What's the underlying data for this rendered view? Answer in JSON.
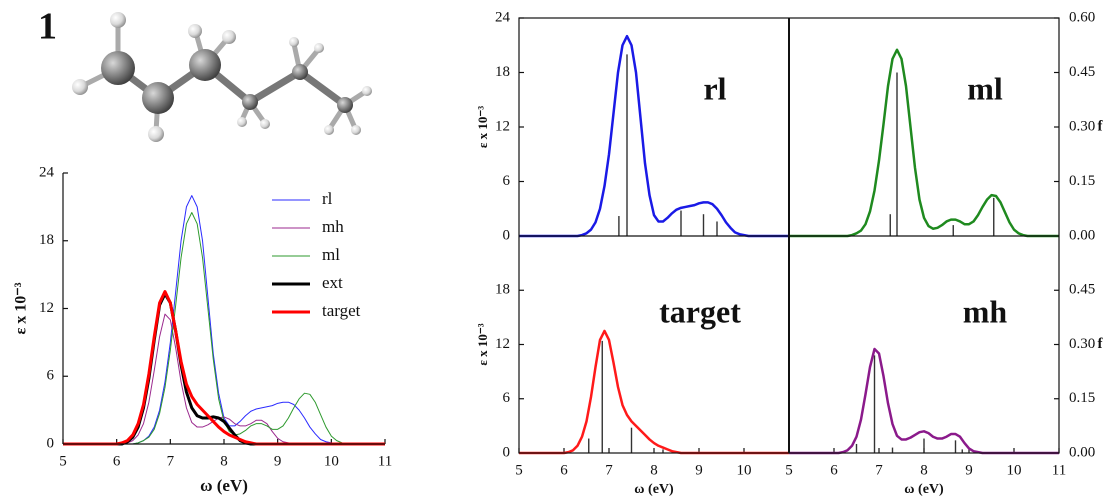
{
  "chart_data": [
    {
      "type": "line",
      "title": "1",
      "xlabel": "ω (eV)",
      "ylabel": "ε x 10⁻³",
      "xlim": [
        5,
        11
      ],
      "xticks": [
        5,
        6,
        7,
        8,
        9,
        10,
        11
      ],
      "ylim": [
        0,
        24
      ],
      "yticks": [
        0,
        6,
        12,
        18,
        24
      ],
      "legend": "upper right",
      "x": [
        5,
        6,
        6.1,
        6.2,
        6.3,
        6.4,
        6.5,
        6.6,
        6.7,
        6.8,
        6.9,
        7,
        7.1,
        7.2,
        7.3,
        7.4,
        7.5,
        7.6,
        7.7,
        7.8,
        7.9,
        8,
        8.1,
        8.2,
        8.3,
        8.4,
        8.5,
        8.6,
        8.7,
        8.8,
        8.9,
        9,
        9.1,
        9.2,
        9.3,
        9.4,
        9.5,
        9.6,
        9.7,
        9.8,
        9.9,
        10,
        10.1,
        10.2,
        10.3,
        10.4,
        10.5,
        10.6,
        11
      ],
      "series": [
        {
          "name": "rl",
          "color": "#2b2bff",
          "linewidth": 1,
          "values": [
            0,
            0,
            0,
            0,
            0,
            0.1,
            0.3,
            0.7,
            1.5,
            3,
            5.5,
            9,
            13.5,
            18,
            21,
            22,
            21,
            18,
            13,
            8,
            4.5,
            2.3,
            1.6,
            1.6,
            2,
            2.5,
            2.9,
            3.1,
            3.2,
            3.3,
            3.4,
            3.6,
            3.7,
            3.7,
            3.5,
            3,
            2.3,
            1.5,
            0.9,
            0.4,
            0.2,
            0.1,
            0,
            0,
            0,
            0,
            0,
            0,
            0
          ]
        },
        {
          "name": "mh",
          "color": "#9b2a8f",
          "linewidth": 1,
          "values": [
            0,
            0,
            0,
            0.1,
            0.3,
            0.8,
            1.8,
            3.7,
            6.5,
            9.5,
            11.5,
            11,
            8.5,
            5.5,
            3.2,
            1.9,
            1.5,
            1.5,
            1.7,
            2,
            2.3,
            2.4,
            2.2,
            1.8,
            1.6,
            1.6,
            1.8,
            2.1,
            2.1,
            1.8,
            1.1,
            0.5,
            0.2,
            0.1,
            0,
            0,
            0,
            0,
            0,
            0,
            0,
            0,
            0,
            0,
            0,
            0,
            0,
            0,
            0
          ]
        },
        {
          "name": "ml",
          "color": "#2e9a2e",
          "linewidth": 1,
          "values": [
            0,
            0,
            0,
            0,
            0,
            0.1,
            0.3,
            0.6,
            1.3,
            2.7,
            5,
            8.3,
            12.3,
            16.5,
            19.5,
            20.5,
            19.5,
            16.5,
            12,
            7.5,
            4,
            2,
            1.1,
            0.8,
            0.9,
            1.2,
            1.6,
            1.8,
            1.8,
            1.6,
            1.3,
            1.3,
            1.6,
            2.3,
            3.2,
            4,
            4.5,
            4.4,
            3.7,
            2.6,
            1.5,
            0.7,
            0.3,
            0.1,
            0,
            0,
            0,
            0,
            0
          ]
        },
        {
          "name": "ext",
          "color": "#000000",
          "linewidth": 3,
          "values": [
            0,
            0,
            0,
            0.2,
            0.6,
            1.5,
            3.2,
            5.8,
            9.2,
            12.3,
            13.3,
            12.5,
            10,
            7,
            4.6,
            3.2,
            2.5,
            2.3,
            2.3,
            2.4,
            2.3,
            2,
            1.4,
            0.8,
            0.3,
            0.1,
            0,
            0,
            0,
            0,
            0,
            0,
            0,
            0,
            0,
            0,
            0,
            0,
            0,
            0,
            0,
            0,
            0,
            0,
            0,
            0,
            0,
            0,
            0
          ]
        },
        {
          "name": "target",
          "color": "#ff0000",
          "linewidth": 3,
          "values": [
            0,
            0,
            0.1,
            0.3,
            0.8,
            1.8,
            3.5,
            6.2,
            9.5,
            12.5,
            13.5,
            12.5,
            10,
            7.3,
            5.3,
            4.2,
            3.5,
            3,
            2.5,
            2,
            1.5,
            1.1,
            0.8,
            0.6,
            0.4,
            0.2,
            0.1,
            0,
            0,
            0,
            0,
            0,
            0,
            0,
            0,
            0,
            0,
            0,
            0,
            0,
            0,
            0,
            0,
            0,
            0,
            0,
            0,
            0,
            0
          ]
        }
      ]
    },
    {
      "type": "line",
      "ylabel": "ε x 10⁻³",
      "xlim": [
        5,
        11
      ],
      "ylim": [
        0,
        24
      ],
      "yticks": [
        0,
        6,
        12,
        18,
        24
      ],
      "y2lim": [
        0,
        0.6
      ],
      "x": [
        5,
        6,
        6.1,
        6.2,
        6.3,
        6.4,
        6.5,
        6.6,
        6.7,
        6.8,
        6.9,
        7,
        7.1,
        7.2,
        7.3,
        7.4,
        7.5,
        7.6,
        7.7,
        7.8,
        7.9,
        8,
        8.1,
        8.2,
        8.3,
        8.4,
        8.5,
        8.6,
        8.7,
        8.8,
        8.9,
        9,
        9.1,
        9.2,
        9.3,
        9.4,
        9.5,
        9.6,
        9.7,
        9.8,
        9.9,
        10,
        10.1,
        10.2,
        10.3,
        10.4,
        10.5,
        10.6,
        11
      ],
      "series": [
        {
          "name": "rl",
          "color": "#1a1ae6",
          "linewidth": 2.5,
          "values": [
            0,
            0,
            0,
            0,
            0,
            0.1,
            0.3,
            0.7,
            1.5,
            3,
            5.5,
            9,
            13.5,
            18,
            21,
            22,
            21,
            18,
            13,
            8,
            4.5,
            2.3,
            1.6,
            1.6,
            2,
            2.5,
            2.9,
            3.1,
            3.2,
            3.3,
            3.4,
            3.6,
            3.7,
            3.7,
            3.5,
            3,
            2.3,
            1.5,
            0.9,
            0.4,
            0.2,
            0.1,
            0,
            0,
            0,
            0,
            0,
            0,
            0
          ]
        }
      ],
      "sticks": {
        "axis": "y2",
        "color": "#333333",
        "x": [
          7.22,
          7.4,
          8.6,
          9.1,
          9.4
        ],
        "values": [
          0.055,
          0.5,
          0.07,
          0.06,
          0.04
        ]
      }
    },
    {
      "type": "line",
      "y2label": "f",
      "xlim": [
        5,
        11
      ],
      "ylim": [
        0,
        24
      ],
      "y2lim": [
        0,
        0.6
      ],
      "y2ticks": [
        {
          "value": 0,
          "label": "0.00"
        },
        0.15,
        {
          "value": 0.3,
          "label": "0.30"
        },
        0.45,
        {
          "value": 0.6,
          "label": "0.60"
        }
      ],
      "x": [
        5,
        6,
        6.1,
        6.2,
        6.3,
        6.4,
        6.5,
        6.6,
        6.7,
        6.8,
        6.9,
        7,
        7.1,
        7.2,
        7.3,
        7.4,
        7.5,
        7.6,
        7.7,
        7.8,
        7.9,
        8,
        8.1,
        8.2,
        8.3,
        8.4,
        8.5,
        8.6,
        8.7,
        8.8,
        8.9,
        9,
        9.1,
        9.2,
        9.3,
        9.4,
        9.5,
        9.6,
        9.7,
        9.8,
        9.9,
        10,
        10.1,
        10.2,
        10.3,
        10.4,
        10.5,
        10.6,
        11
      ],
      "series": [
        {
          "name": "ml",
          "color": "#1f8a1f",
          "linewidth": 2.5,
          "values": [
            0,
            0,
            0,
            0,
            0,
            0.1,
            0.3,
            0.6,
            1.3,
            2.7,
            5,
            8.3,
            12.3,
            16.5,
            19.5,
            20.5,
            19.5,
            16.5,
            12,
            7.5,
            4,
            2,
            1.1,
            0.8,
            0.9,
            1.2,
            1.6,
            1.8,
            1.8,
            1.6,
            1.3,
            1.3,
            1.6,
            2.3,
            3.2,
            4,
            4.5,
            4.4,
            3.7,
            2.6,
            1.5,
            0.7,
            0.3,
            0.1,
            0,
            0,
            0,
            0,
            0
          ]
        }
      ],
      "sticks": {
        "axis": "y2",
        "color": "#333333",
        "x": [
          7.25,
          7.4,
          8.65,
          9.55
        ],
        "values": [
          0.06,
          0.45,
          0.03,
          0.105
        ]
      }
    },
    {
      "type": "line",
      "xlabel": "ω (eV)",
      "ylabel": "ε x 10⁻³",
      "xlim": [
        5,
        11
      ],
      "xticks": [
        5,
        6,
        7,
        8,
        9,
        10
      ],
      "ylim": [
        0,
        24
      ],
      "yticks": [
        0,
        6,
        12,
        18
      ],
      "y2lim": [
        0,
        0.6
      ],
      "x": [
        5,
        6,
        6.1,
        6.2,
        6.3,
        6.4,
        6.5,
        6.6,
        6.7,
        6.8,
        6.9,
        7,
        7.1,
        7.2,
        7.3,
        7.4,
        7.5,
        7.6,
        7.7,
        7.8,
        7.9,
        8,
        8.1,
        8.2,
        8.3,
        8.4,
        8.5,
        8.6,
        8.7,
        8.8,
        8.9,
        9,
        9.1,
        9.2,
        9.3,
        9.4,
        9.5,
        9.6,
        9.7,
        9.8,
        9.9,
        10,
        10.1,
        10.2,
        10.3,
        10.4,
        10.5,
        10.6,
        11
      ],
      "series": [
        {
          "name": "target",
          "color": "#ff1a1a",
          "linewidth": 2.5,
          "values": [
            0,
            0,
            0.1,
            0.3,
            0.8,
            1.8,
            3.5,
            6.2,
            9.5,
            12.5,
            13.5,
            12.5,
            10,
            7.3,
            5.3,
            4.2,
            3.5,
            3,
            2.5,
            2,
            1.5,
            1.1,
            0.8,
            0.6,
            0.4,
            0.2,
            0.1,
            0,
            0,
            0,
            0,
            0,
            0,
            0,
            0,
            0,
            0,
            0,
            0,
            0,
            0,
            0,
            0,
            0,
            0,
            0,
            0,
            0,
            0
          ]
        }
      ],
      "sticks": {
        "axis": "y2",
        "color": "#333333",
        "x": [
          6.55,
          6.85,
          7.5,
          8.2
        ],
        "values": [
          0.04,
          0.31,
          0.07,
          0.01
        ]
      }
    },
    {
      "type": "line",
      "xlabel": "ω (eV)",
      "y2label": "f",
      "xlim": [
        5,
        11
      ],
      "xticks": [
        5,
        6,
        7,
        8,
        9,
        10,
        11
      ],
      "ylim": [
        0,
        24
      ],
      "y2lim": [
        0,
        0.6
      ],
      "y2ticks": [
        {
          "value": 0,
          "label": "0.00"
        },
        0.15,
        {
          "value": 0.3,
          "label": "0.30"
        },
        0.45
      ],
      "x": [
        5,
        6,
        6.1,
        6.2,
        6.3,
        6.4,
        6.5,
        6.6,
        6.7,
        6.8,
        6.9,
        7,
        7.1,
        7.2,
        7.3,
        7.4,
        7.5,
        7.6,
        7.7,
        7.8,
        7.9,
        8,
        8.1,
        8.2,
        8.3,
        8.4,
        8.5,
        8.6,
        8.7,
        8.8,
        8.9,
        9,
        9.1,
        9.2,
        9.3,
        9.4,
        9.5,
        9.6,
        9.7,
        9.8,
        9.9,
        10,
        10.1,
        10.2,
        10.3,
        10.4,
        10.5,
        10.6,
        11
      ],
      "series": [
        {
          "name": "mh",
          "color": "#8b1a8b",
          "linewidth": 2.5,
          "values": [
            0,
            0,
            0,
            0.1,
            0.3,
            0.8,
            1.8,
            3.7,
            6.5,
            9.5,
            11.5,
            11,
            8.5,
            5.5,
            3.2,
            1.9,
            1.5,
            1.5,
            1.7,
            2,
            2.3,
            2.4,
            2.2,
            1.8,
            1.6,
            1.6,
            1.8,
            2.1,
            2.1,
            1.8,
            1.1,
            0.5,
            0.2,
            0.1,
            0,
            0,
            0,
            0,
            0,
            0,
            0,
            0,
            0,
            0,
            0,
            0,
            0,
            0,
            0
          ]
        }
      ],
      "sticks": {
        "axis": "y2",
        "color": "#333333",
        "x": [
          6.5,
          6.9,
          7.3,
          8.0,
          8.7,
          8.85
        ],
        "values": [
          0.025,
          0.27,
          0.015,
          0.04,
          0.035,
          0.01
        ]
      }
    }
  ]
}
